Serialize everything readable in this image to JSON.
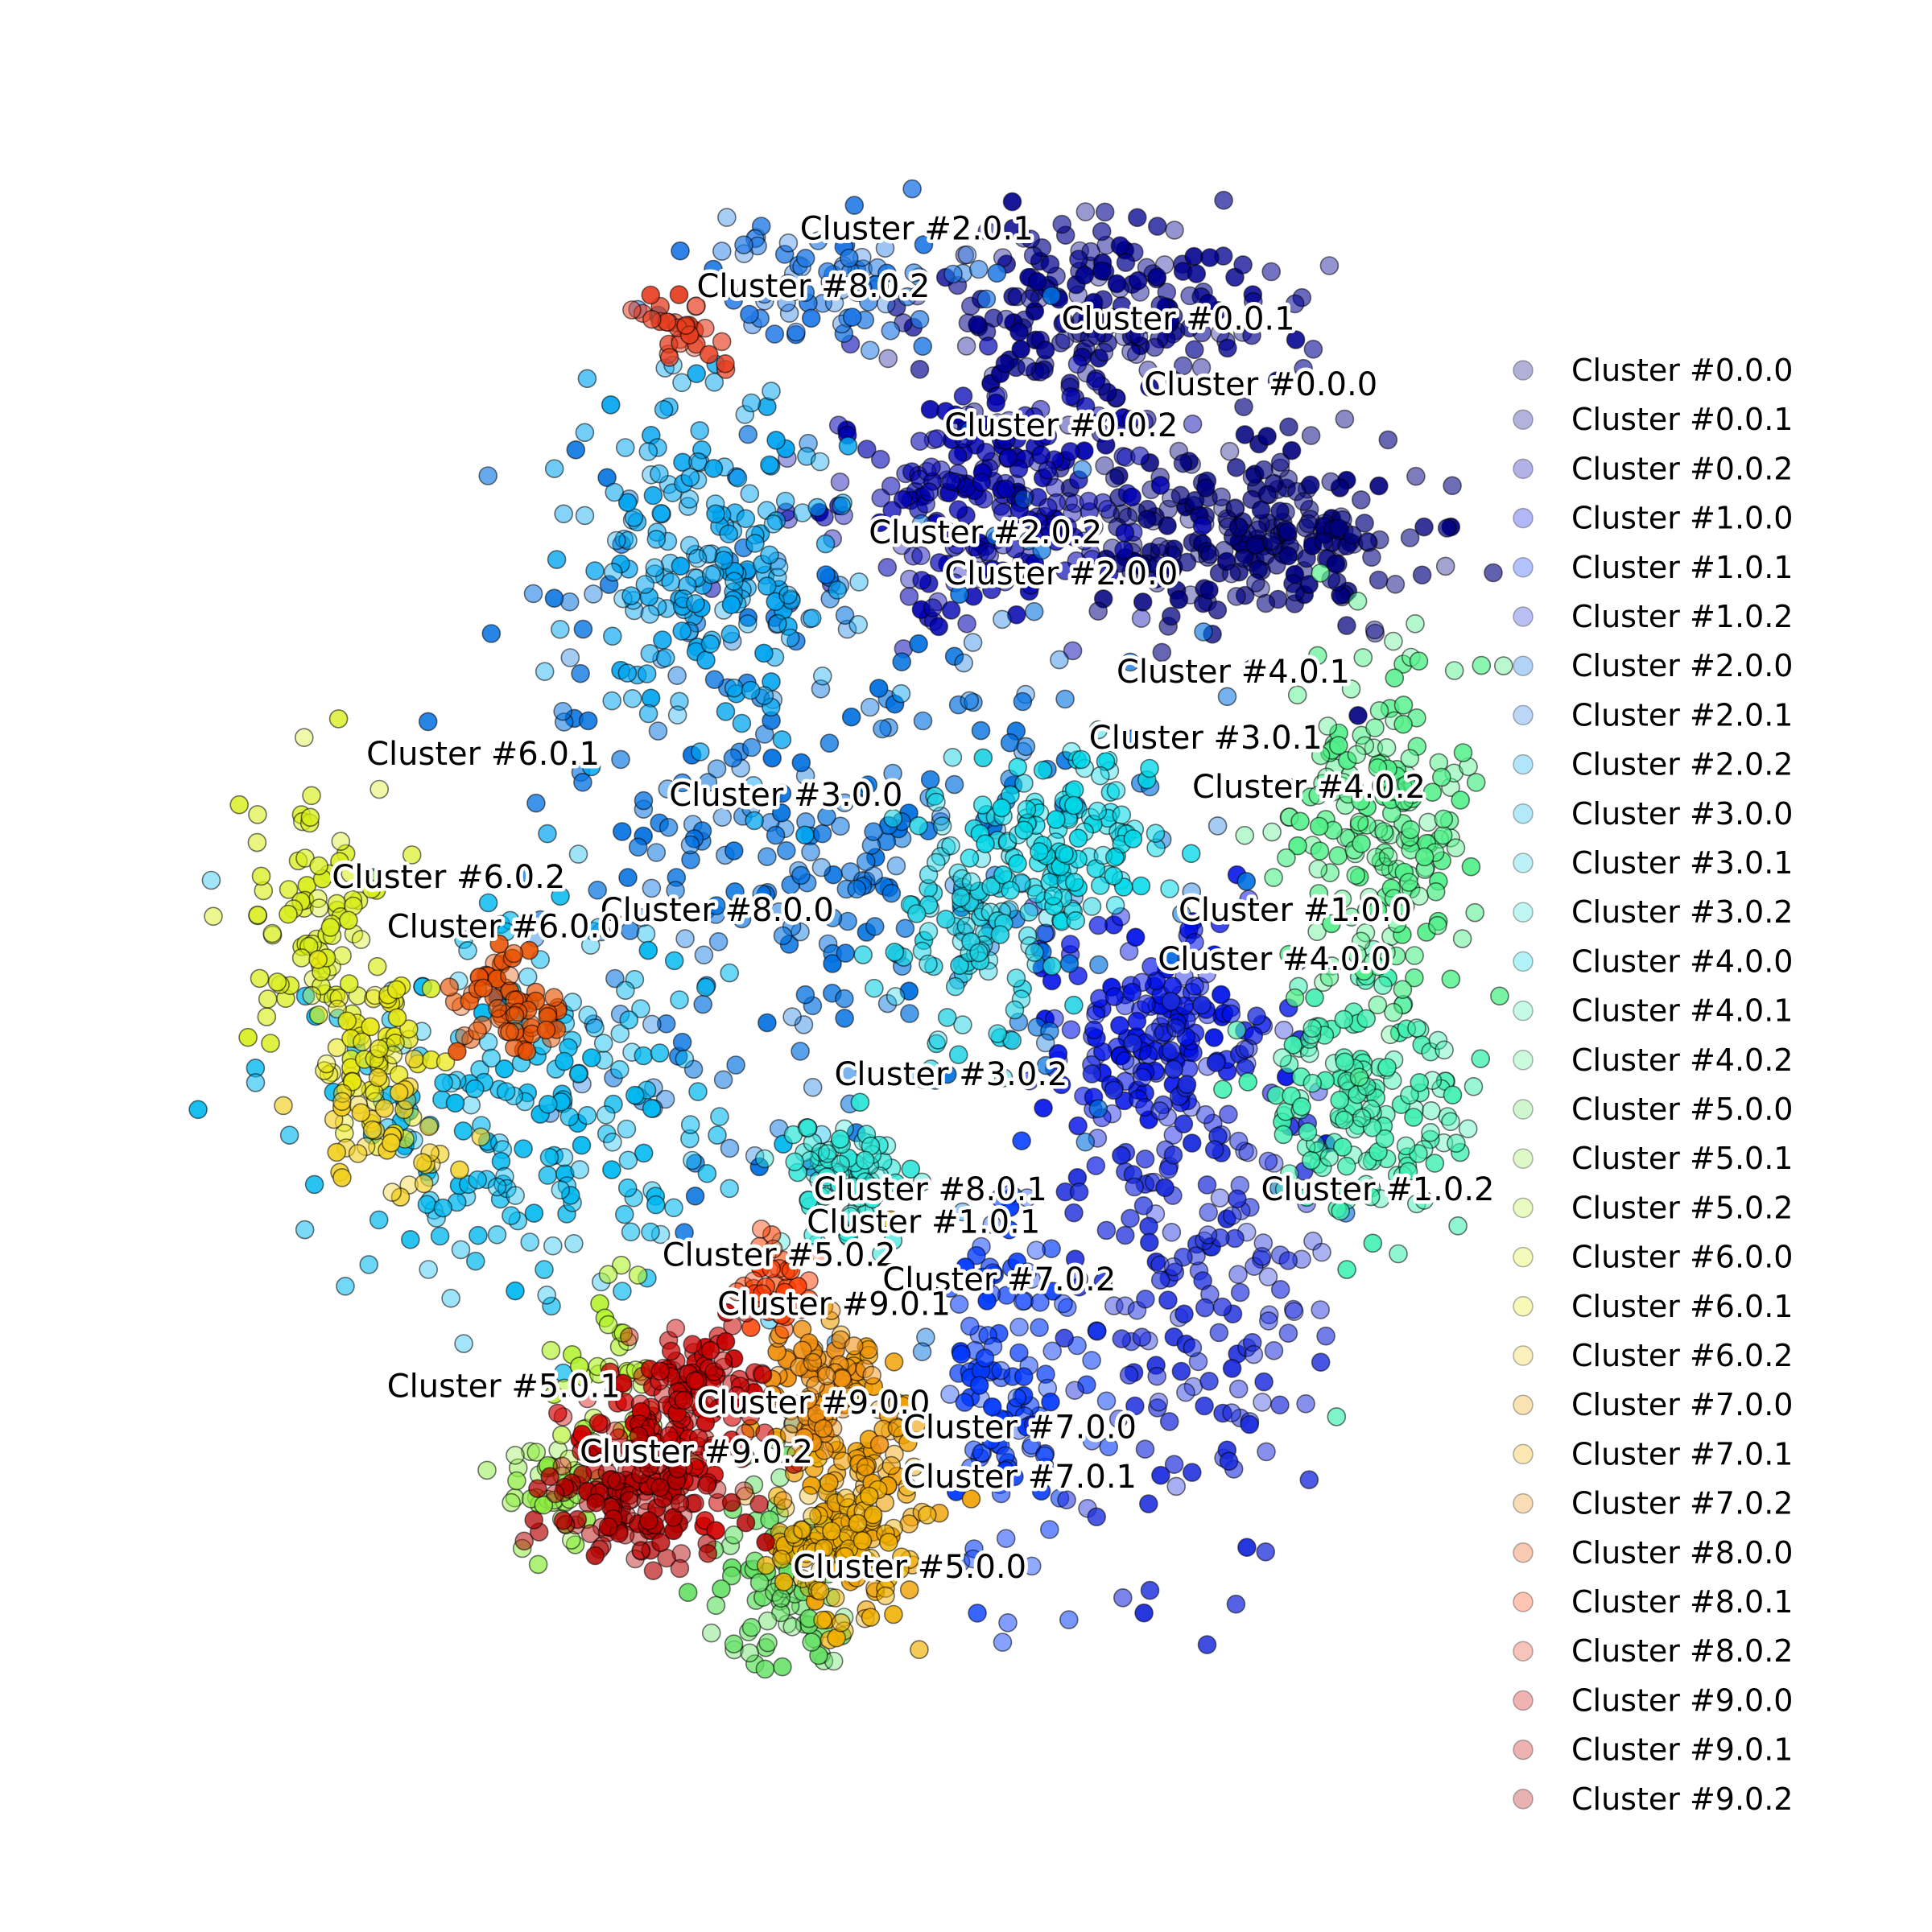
{
  "chart_data": {
    "type": "scatter",
    "title": "",
    "xlabel": "",
    "ylabel": "",
    "axes_visible": false,
    "grid": false,
    "legend_position": "right",
    "xlim": [
      -1,
      1
    ],
    "ylim": [
      -1,
      1
    ],
    "series": [
      {
        "name": "Cluster #0.0.0",
        "color": "#00007f",
        "centroid": [
          0.59,
          0.52
        ],
        "spread": [
          0.12,
          0.06
        ],
        "n": 240
      },
      {
        "name": "Cluster #0.0.1",
        "color": "#00008f",
        "centroid": [
          0.36,
          0.79
        ],
        "spread": [
          0.12,
          0.06
        ],
        "n": 200
      },
      {
        "name": "Cluster #0.0.2",
        "color": "#0000b2",
        "centroid": [
          0.21,
          0.56
        ],
        "spread": [
          0.12,
          0.07
        ],
        "n": 240
      },
      {
        "name": "Cluster #1.0.0",
        "color": "#0010e8",
        "centroid": [
          0.45,
          -0.07
        ],
        "spread": [
          0.09,
          0.07
        ],
        "n": 160
      },
      {
        "name": "Cluster #1.0.1",
        "color": "#0038ff",
        "centroid": [
          0.24,
          -0.51
        ],
        "spread": [
          0.05,
          0.12
        ],
        "n": 120
      },
      {
        "name": "Cluster #1.0.2",
        "color": "#1a2bdc",
        "centroid": [
          0.52,
          -0.38
        ],
        "spread": [
          0.09,
          0.16
        ],
        "n": 200
      },
      {
        "name": "Cluster #2.0.0",
        "color": "#0070e0",
        "centroid": [
          -0.03,
          0.15
        ],
        "spread": [
          0.24,
          0.2
        ],
        "n": 320
      },
      {
        "name": "Cluster #2.0.1",
        "color": "#1e78e6",
        "centroid": [
          -0.01,
          0.83
        ],
        "spread": [
          0.1,
          0.04
        ],
        "n": 80
      },
      {
        "name": "Cluster #2.0.2",
        "color": "#00a4f0",
        "centroid": [
          -0.2,
          0.49
        ],
        "spread": [
          0.1,
          0.12
        ],
        "n": 200
      },
      {
        "name": "Cluster #3.0.0",
        "color": "#00b8f0",
        "centroid": [
          -0.48,
          -0.2
        ],
        "spread": [
          0.16,
          0.12
        ],
        "n": 220
      },
      {
        "name": "Cluster #3.0.1",
        "color": "#1ed2e4",
        "centroid": [
          0.2,
          0.04
        ],
        "spread": [
          0.06,
          0.08
        ],
        "n": 110
      },
      {
        "name": "Cluster #3.0.2",
        "color": "#2ee6d8",
        "centroid": [
          0.01,
          -0.27
        ],
        "spread": [
          0.05,
          0.04
        ],
        "n": 90
      },
      {
        "name": "Cluster #4.0.0",
        "color": "#00d8e8",
        "centroid": [
          0.34,
          0.16
        ],
        "spread": [
          0.06,
          0.05
        ],
        "n": 110
      },
      {
        "name": "Cluster #4.0.1",
        "color": "#40f0b0",
        "centroid": [
          0.76,
          -0.17
        ],
        "spread": [
          0.07,
          0.08
        ],
        "n": 160
      },
      {
        "name": "Cluster #4.0.2",
        "color": "#52f08a",
        "centroid": [
          0.79,
          0.16
        ],
        "spread": [
          0.07,
          0.1
        ],
        "n": 200
      },
      {
        "name": "Cluster #5.0.0",
        "color": "#64e064",
        "centroid": [
          -0.09,
          -0.74
        ],
        "spread": [
          0.05,
          0.07
        ],
        "n": 90
      },
      {
        "name": "Cluster #5.0.1",
        "color": "#8fec44",
        "centroid": [
          -0.41,
          -0.64
        ],
        "spread": [
          0.04,
          0.04
        ],
        "n": 40
      },
      {
        "name": "Cluster #5.0.2",
        "color": "#b4f232",
        "centroid": [
          -0.33,
          -0.5
        ],
        "spread": [
          0.04,
          0.05
        ],
        "n": 40
      },
      {
        "name": "Cluster #6.0.0",
        "color": "#d8ee1c",
        "centroid": [
          -0.75,
          0.05
        ],
        "spread": [
          0.06,
          0.09
        ],
        "n": 90
      },
      {
        "name": "Cluster #6.0.1",
        "color": "#e8e810",
        "centroid": [
          -0.68,
          -0.12
        ],
        "spread": [
          0.04,
          0.05
        ],
        "n": 60
      },
      {
        "name": "Cluster #6.0.2",
        "color": "#f2d020",
        "centroid": [
          -0.66,
          -0.21
        ],
        "spread": [
          0.05,
          0.04
        ],
        "n": 40
      },
      {
        "name": "Cluster #7.0.0",
        "color": "#f0a000",
        "centroid": [
          0.02,
          -0.62
        ],
        "spread": [
          0.06,
          0.08
        ],
        "n": 120
      },
      {
        "name": "Cluster #7.0.1",
        "color": "#f0b000",
        "centroid": [
          0.0,
          -0.71
        ],
        "spread": [
          0.05,
          0.05
        ],
        "n": 90
      },
      {
        "name": "Cluster #7.0.2",
        "color": "#f09010",
        "centroid": [
          -0.04,
          -0.52
        ],
        "spread": [
          0.04,
          0.04
        ],
        "n": 80
      },
      {
        "name": "Cluster #8.0.0",
        "color": "#e85000",
        "centroid": [
          -0.48,
          -0.06
        ],
        "spread": [
          0.04,
          0.04
        ],
        "n": 60
      },
      {
        "name": "Cluster #8.0.1",
        "color": "#ff3c00",
        "centroid": [
          -0.1,
          -0.39
        ],
        "spread": [
          0.03,
          0.03
        ],
        "n": 40
      },
      {
        "name": "Cluster #8.0.2",
        "color": "#e63c1e",
        "centroid": [
          -0.24,
          0.77
        ],
        "spread": [
          0.04,
          0.02
        ],
        "n": 30
      },
      {
        "name": "Cluster #9.0.0",
        "color": "#d20000",
        "centroid": [
          -0.27,
          -0.6
        ],
        "spread": [
          0.06,
          0.04
        ],
        "n": 110
      },
      {
        "name": "Cluster #9.0.1",
        "color": "#c80000",
        "centroid": [
          -0.2,
          -0.52
        ],
        "spread": [
          0.05,
          0.04
        ],
        "n": 90
      },
      {
        "name": "Cluster #9.0.2",
        "color": "#b40000",
        "centroid": [
          -0.3,
          -0.66
        ],
        "spread": [
          0.07,
          0.04
        ],
        "n": 110
      }
    ],
    "annotations": [
      {
        "text": "Cluster #2.0.1",
        "x": -0.06,
        "y": 0.88
      },
      {
        "text": "Cluster #8.0.2",
        "x": -0.21,
        "y": 0.81
      },
      {
        "text": "Cluster #0.0.1",
        "x": 0.32,
        "y": 0.77
      },
      {
        "text": "Cluster #0.0.0",
        "x": 0.44,
        "y": 0.69
      },
      {
        "text": "Cluster #0.0.2",
        "x": 0.15,
        "y": 0.64
      },
      {
        "text": "Cluster #2.0.2",
        "x": 0.04,
        "y": 0.51
      },
      {
        "text": "Cluster #2.0.0",
        "x": 0.15,
        "y": 0.46
      },
      {
        "text": "Cluster #4.0.1",
        "x": 0.4,
        "y": 0.34
      },
      {
        "text": "Cluster #3.0.1",
        "x": 0.36,
        "y": 0.26
      },
      {
        "text": "Cluster #4.0.2",
        "x": 0.51,
        "y": 0.2
      },
      {
        "text": "Cluster #6.0.1",
        "x": -0.69,
        "y": 0.24
      },
      {
        "text": "Cluster #3.0.0",
        "x": -0.25,
        "y": 0.19
      },
      {
        "text": "Cluster #6.0.2",
        "x": -0.74,
        "y": 0.09
      },
      {
        "text": "Cluster #8.0.0",
        "x": -0.35,
        "y": 0.05
      },
      {
        "text": "Cluster #1.0.0",
        "x": 0.49,
        "y": 0.05
      },
      {
        "text": "Cluster #6.0.0",
        "x": -0.66,
        "y": 0.03
      },
      {
        "text": "Cluster #4.0.0",
        "x": 0.46,
        "y": -0.01
      },
      {
        "text": "Cluster #3.0.2",
        "x": -0.01,
        "y": -0.15
      },
      {
        "text": "Cluster #8.0.1",
        "x": -0.04,
        "y": -0.29
      },
      {
        "text": "Cluster #1.0.2",
        "x": 0.61,
        "y": -0.29
      },
      {
        "text": "Cluster #1.0.1",
        "x": -0.05,
        "y": -0.33
      },
      {
        "text": "Cluster #5.0.2",
        "x": -0.26,
        "y": -0.37
      },
      {
        "text": "Cluster #7.0.2",
        "x": 0.06,
        "y": -0.4
      },
      {
        "text": "Cluster #9.0.1",
        "x": -0.18,
        "y": -0.43
      },
      {
        "text": "Cluster #5.0.1",
        "x": -0.66,
        "y": -0.53
      },
      {
        "text": "Cluster #9.0.0",
        "x": -0.21,
        "y": -0.55
      },
      {
        "text": "Cluster #7.0.0",
        "x": 0.09,
        "y": -0.58
      },
      {
        "text": "Cluster #9.0.2",
        "x": -0.38,
        "y": -0.61
      },
      {
        "text": "Cluster #7.0.1",
        "x": 0.09,
        "y": -0.64
      },
      {
        "text": "Cluster #5.0.0",
        "x": -0.07,
        "y": -0.75
      }
    ]
  }
}
